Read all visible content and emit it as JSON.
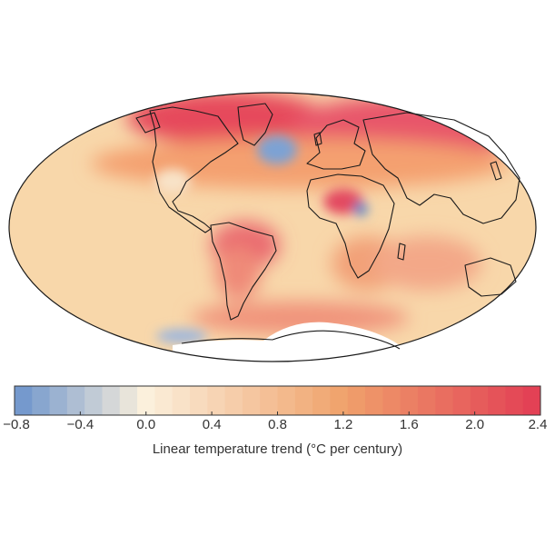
{
  "chart_data": {
    "type": "heatmap",
    "projection": "mollweide world map",
    "colorbar": {
      "label": "Linear temperature trend (°C per century)",
      "min": -0.8,
      "max": 2.4,
      "ticks": [
        -0.8,
        -0.4,
        0.0,
        0.4,
        0.8,
        1.2,
        1.6,
        2.0,
        2.4
      ],
      "tick_labels": [
        "−0.8",
        "−0.4",
        "0.0",
        "0.4",
        "0.8",
        "1.2",
        "1.6",
        "2.0",
        "2.4"
      ],
      "steps": 30,
      "colors": {
        "cold": "#6b93cc",
        "neutral": "#fbf0dc",
        "warm": "#f0a26c",
        "hot": "#e23d54"
      }
    },
    "regions": [
      {
        "name": "arctic-canada-greenland",
        "trend": 2.2
      },
      {
        "name": "siberia-northern-eurasia",
        "trend": 2.0
      },
      {
        "name": "north-atlantic",
        "trend": -0.5
      },
      {
        "name": "central-africa",
        "trend": 1.9
      },
      {
        "name": "brazil",
        "trend": 1.8
      },
      {
        "name": "southern-ocean",
        "trend": 1.2
      },
      {
        "name": "antarctic-coast",
        "trend": -0.3
      },
      {
        "name": "open-ocean-background",
        "trend": 0.6
      }
    ]
  }
}
